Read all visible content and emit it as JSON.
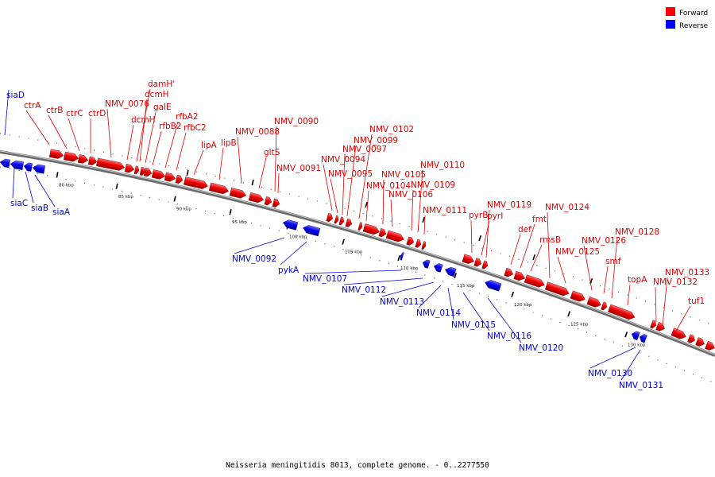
{
  "legend": {
    "forward": {
      "label": "Forward",
      "color": "#ff0000"
    },
    "reverse": {
      "label": "Reverse",
      "color": "#0000ff"
    }
  },
  "footer": "Neisseria meningitidis 8013, complete genome. - 0..2277550",
  "ticks": [
    "80 kbp",
    "85 kbp",
    "90 kbp",
    "95 kbp",
    "100 kbp",
    "105 kbp",
    "110 kbp",
    "115 kbp",
    "120 kbp",
    "125 kbp",
    "130 kbp"
  ],
  "forward_genes": [
    "ctrA",
    "ctrB",
    "ctrC",
    "ctrD",
    "NMV_0076",
    "dcmH",
    "damH'",
    "dcmH",
    "galE",
    "rfbB2",
    "rfbA2",
    "rfbC2",
    "lipA",
    "lipB",
    "NMV_0088",
    "gltS",
    "NMV_0090",
    "NMV_0091",
    "NMV_0094",
    "NMV_0095",
    "NMV_0097",
    "NMV_0099",
    "NMV_0102",
    "NMV_0104",
    "NMV_0105",
    "NMV_0106",
    "NMV_0109",
    "NMV_0110",
    "NMV_0111",
    "pyrB",
    "pyrI",
    "NMV_0119",
    "def",
    "fmt",
    "rmsB",
    "NMV_0124",
    "NMV_0125",
    "NMV_0126",
    "smf",
    "NMV_0128",
    "topA",
    "NMV_0132",
    "NMV_0133",
    "tuf1"
  ],
  "reverse_genes": [
    "siaD",
    "siaC",
    "siaB",
    "siaA",
    "NMV_0092",
    "pykA",
    "NMV_0107",
    "NMV_0112",
    "NMV_0113",
    "NMV_0114",
    "NMV_0115",
    "NMV_0116",
    "NMV_0120",
    "NMV_0130",
    "NMV_0131"
  ]
}
